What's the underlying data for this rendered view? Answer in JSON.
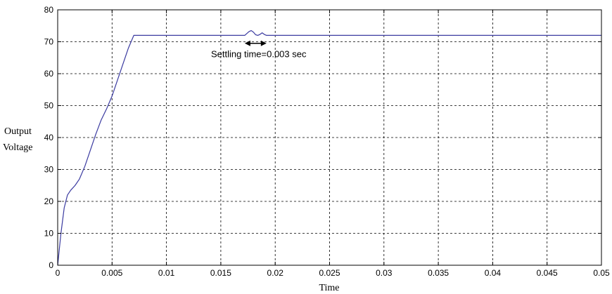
{
  "chart_data": {
    "type": "line",
    "title": "",
    "xlabel": "Time",
    "ylabel_lines": [
      "Output",
      "Voltage"
    ],
    "xlim": [
      0,
      0.05
    ],
    "ylim": [
      0,
      80
    ],
    "grid": true,
    "xticks": [
      0,
      0.005,
      0.01,
      0.015,
      0.02,
      0.025,
      0.03,
      0.035,
      0.04,
      0.045,
      0.05
    ],
    "xtick_labels": [
      "0",
      "0.005",
      "0.01",
      "0.015",
      "0.02",
      "0.025",
      "0.03",
      "0.035",
      "0.04",
      "0.045",
      "0.05"
    ],
    "yticks": [
      0,
      10,
      20,
      30,
      40,
      50,
      60,
      70,
      80
    ],
    "ytick_labels": [
      "0",
      "10",
      "20",
      "30",
      "40",
      "50",
      "60",
      "70",
      "80"
    ],
    "series": [
      {
        "color": "#3a3aa0",
        "x": [
          0,
          0.0003,
          0.0006,
          0.0009,
          0.0012,
          0.0016,
          0.002,
          0.0025,
          0.003,
          0.0035,
          0.004,
          0.0045,
          0.005,
          0.0055,
          0.006,
          0.0065,
          0.007,
          0.0072,
          0.0075,
          0.01,
          0.015,
          0.0172,
          0.0176,
          0.0178,
          0.018,
          0.0182,
          0.0184,
          0.0186,
          0.0188,
          0.019,
          0.0192,
          0.0194,
          0.0196,
          0.02,
          0.025,
          0.03,
          0.035,
          0.04,
          0.045,
          0.05
        ],
        "y": [
          0,
          10,
          18,
          22,
          23.5,
          25,
          27,
          31,
          36,
          41,
          45.5,
          49,
          53,
          58,
          63,
          68,
          72,
          72,
          72,
          72,
          72,
          72,
          73.2,
          73.5,
          73,
          72.2,
          72,
          72.3,
          72.8,
          72.3,
          72,
          72,
          72,
          72,
          72,
          72,
          72,
          72,
          72,
          72
        ]
      }
    ],
    "annotations": [
      {
        "text": "Settling time=0.003 sec",
        "arrow_from_x": 0.0172,
        "arrow_to_x": 0.0192,
        "arrow_y": 69.5,
        "text_x": 0.0141,
        "text_y": 65.2
      }
    ]
  }
}
